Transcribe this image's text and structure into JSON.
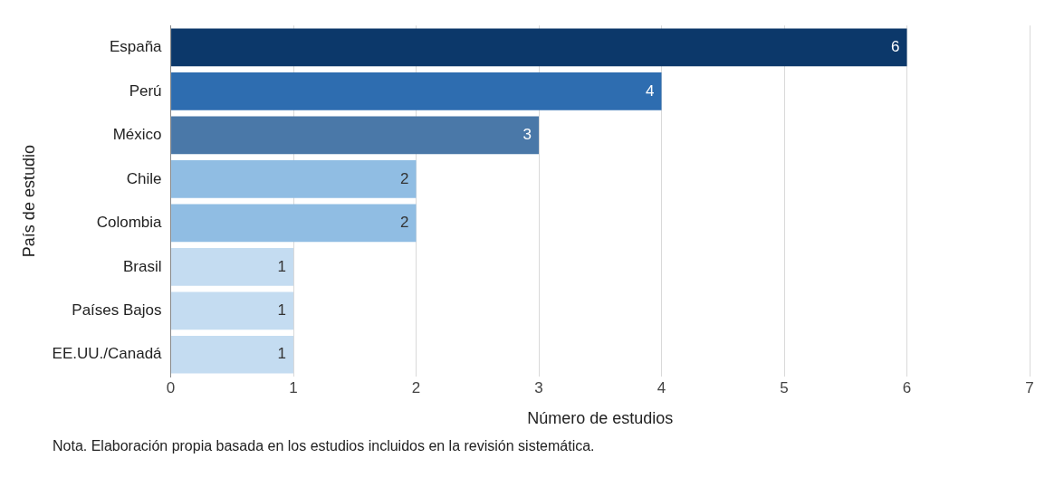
{
  "chart_data": {
    "type": "bar",
    "orientation": "horizontal",
    "xlabel": "Número de estudios",
    "ylabel": "País de estudio",
    "categories": [
      "España",
      "Perú",
      "México",
      "Chile",
      "Colombia",
      "Brasil",
      "Países Bajos",
      "EE.UU./Canadá"
    ],
    "values": [
      6,
      4,
      3,
      2,
      2,
      1,
      1,
      1
    ],
    "colors": [
      "#0c386a",
      "#2e6db0",
      "#4a78a8",
      "#90bde3",
      "#90bde3",
      "#c4dcf1",
      "#c4dcf1",
      "#c4dcf1"
    ],
    "xlim": [
      0,
      7
    ],
    "xticks": [
      0,
      1,
      2,
      3,
      4,
      5,
      6,
      7
    ],
    "grid": "x",
    "data_labels": true,
    "annotations": [
      "Nota. Elaboración propia basada en los estudios incluidos en la revisión sistemática."
    ]
  }
}
